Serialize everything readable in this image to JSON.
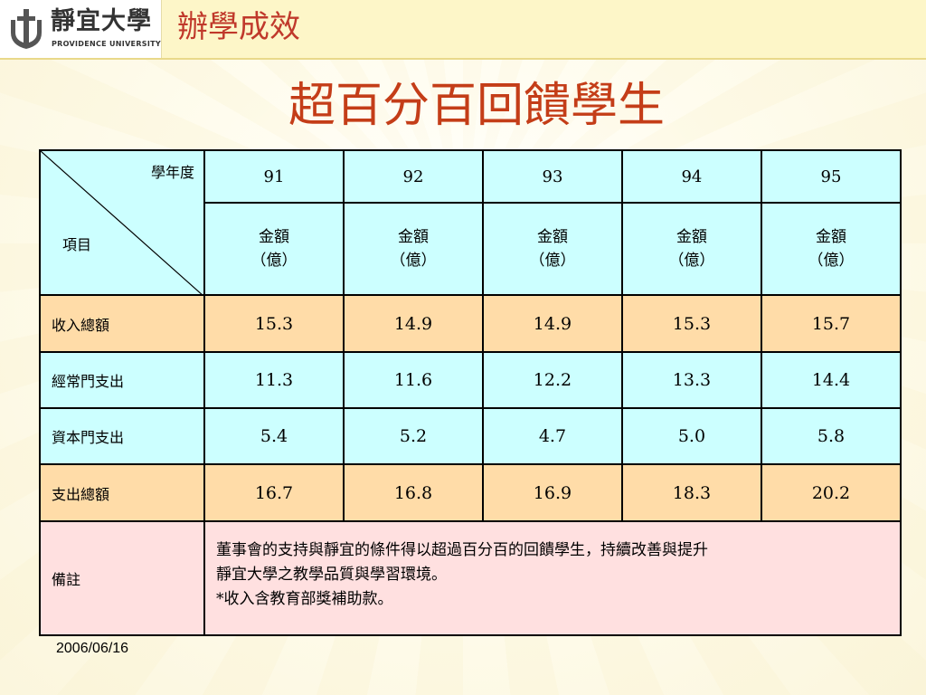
{
  "header": {
    "logo_cn": "靜宜大學",
    "logo_en": "PROVIDENCE UNIVERSITY",
    "section_title": "辦學成效"
  },
  "title": "超百分百回饋學生",
  "table": {
    "corner_top": "學年度",
    "corner_bottom": "項目",
    "years": [
      "91",
      "92",
      "93",
      "94",
      "95"
    ],
    "unit_line1": "金額",
    "unit_line2": "（億）",
    "rows": [
      {
        "label": "收入總額",
        "values": [
          "15.3",
          "14.9",
          "14.9",
          "15.3",
          "15.7"
        ],
        "style": "orange"
      },
      {
        "label": "經常門支出",
        "values": [
          "11.3",
          "11.6",
          "12.2",
          "13.3",
          "14.4"
        ],
        "style": "cyan"
      },
      {
        "label": "資本門支出",
        "values": [
          "5.4",
          "5.2",
          "4.7",
          "5.0",
          "5.8"
        ],
        "style": "cyan"
      },
      {
        "label": "支出總額",
        "values": [
          "16.7",
          "16.8",
          "16.9",
          "18.3",
          "20.2"
        ],
        "style": "orange"
      }
    ],
    "note_label": "備註",
    "note_line1": "董事會的支持與靜宜的條件得以超過百分百的回饋學生，持續改善與提升",
    "note_line2": "靜宜大學之教學品質與學習環境。",
    "note_line3": "*收入含教育部獎補助款。"
  },
  "footer": {
    "date": "2006/06/16"
  },
  "colors": {
    "title_red": "#c43d18",
    "header_bg": "#fdf6c8",
    "cyan": "#ccffff",
    "orange": "#ffdca8",
    "pink": "#ffe0e0"
  }
}
